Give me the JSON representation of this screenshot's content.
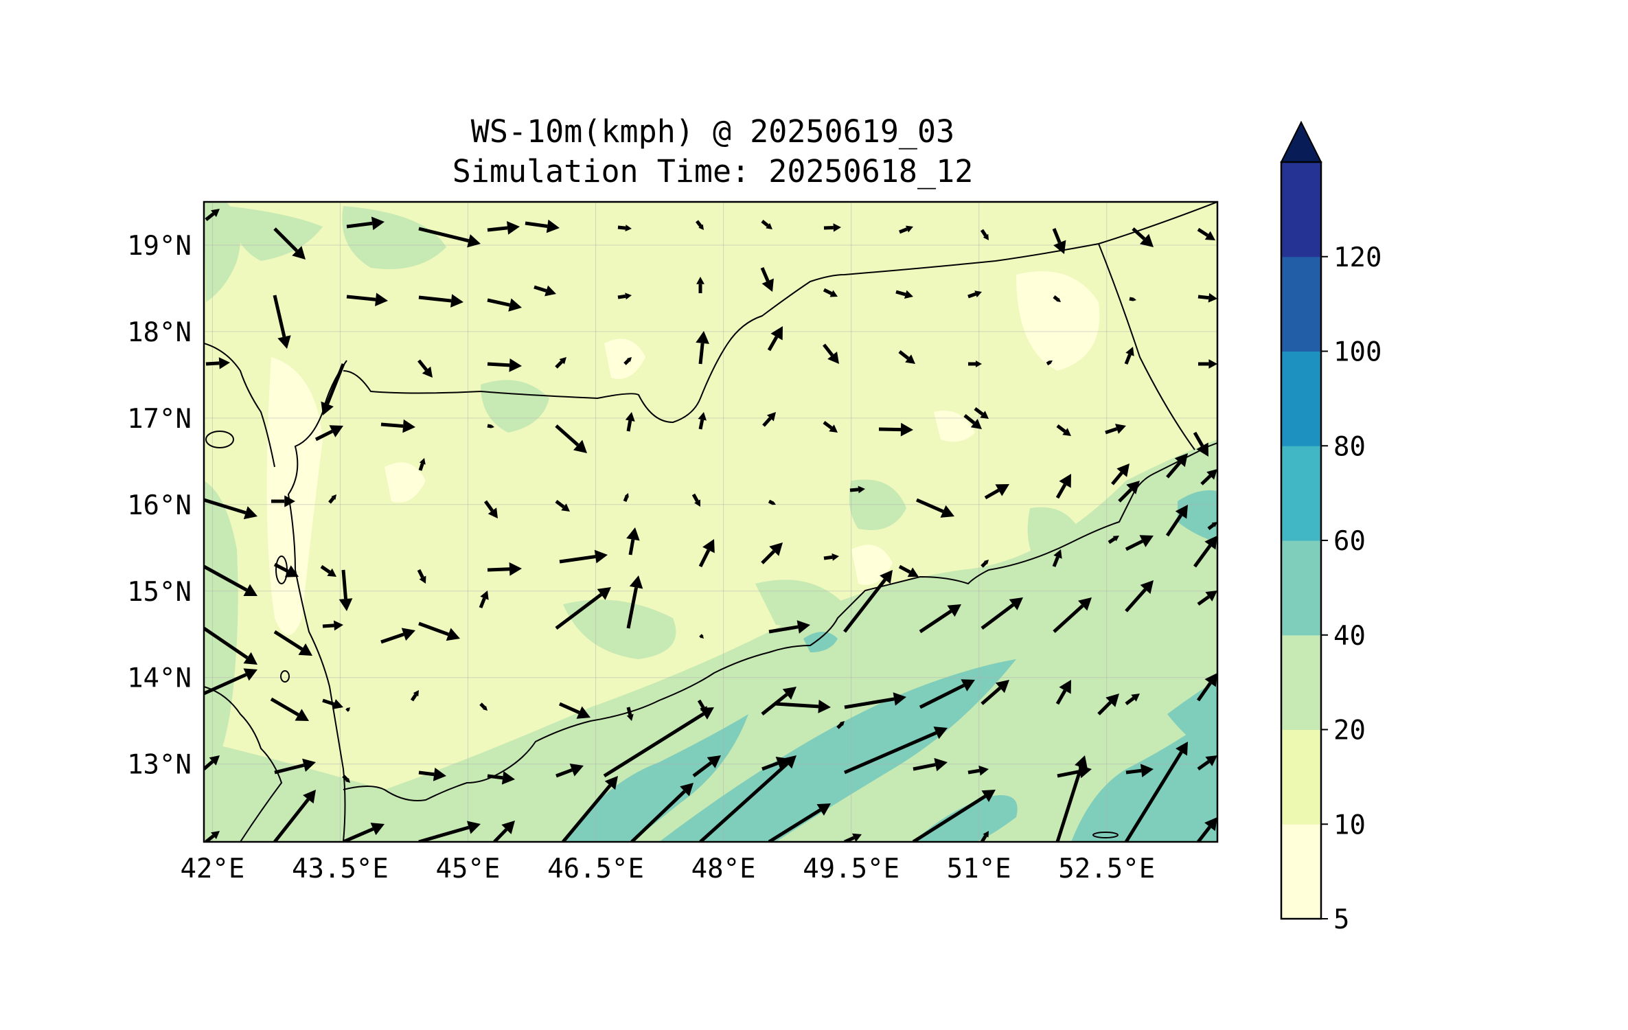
{
  "title": {
    "line1": "WS-10m(kmph) @ 20250619_03",
    "line2": "Simulation Time: 20250618_12"
  },
  "map": {
    "lon_range": [
      41.9,
      53.8
    ],
    "lat_range": [
      12.1,
      19.5
    ],
    "lon_ticks": [
      "42°E",
      "43.5°E",
      "45°E",
      "46.5°E",
      "48°E",
      "49.5°E",
      "51°E",
      "52.5°E"
    ],
    "lat_ticks": [
      "19°N",
      "18°N",
      "17°N",
      "16°N",
      "15°N",
      "14°N",
      "13°N"
    ],
    "background_color": "#eff9bd",
    "border_color": "#000000",
    "gridlines": true
  },
  "colorbar": {
    "levels": [
      "5",
      "10",
      "20",
      "40",
      "60",
      "80",
      "100",
      "120"
    ],
    "colors": [
      "#ffffd9",
      "#edf8b1",
      "#c7e9b4",
      "#7fcdbb",
      "#41b6c4",
      "#1d91c0",
      "#225ea8",
      "#253494"
    ],
    "extend_color": "#081d58",
    "extend": "max"
  }
}
